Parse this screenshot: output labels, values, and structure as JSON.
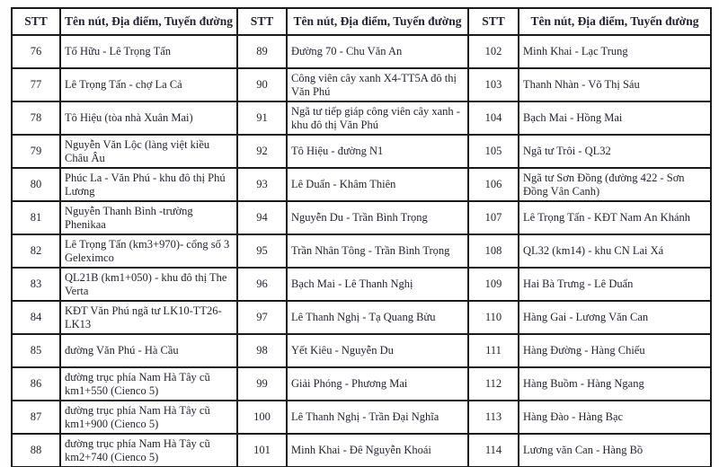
{
  "table": {
    "header": {
      "stt_label": "STT",
      "name_label": "Tên nút, Địa điểm, Tuyến đường"
    },
    "groups": [
      {
        "rows": [
          {
            "stt": "76",
            "name": "Tố Hữu - Lê Trọng Tấn"
          },
          {
            "stt": "77",
            "name": "Lê Trọng Tấn - chợ La Cả"
          },
          {
            "stt": "78",
            "name": "Tô Hiệu (tòa nhà Xuân Mai)"
          },
          {
            "stt": "79",
            "name": "Nguyễn Văn Lộc (làng việt kiều Châu Âu"
          },
          {
            "stt": "80",
            "name": "Phúc La - Văn Phú - khu đô thị Phú Lương"
          },
          {
            "stt": "81",
            "name": "Nguyễn Thanh Bình -trường Phenikaa"
          },
          {
            "stt": "82",
            "name": "Lê Trọng Tấn (km3+970)- cổng số 3 Geleximco"
          },
          {
            "stt": "83",
            "name": "QL21B (km1+050) - khu đô thị The Verta"
          },
          {
            "stt": "84",
            "name": "KĐT Văn Phú ngã tư LK10-TT26-LK13"
          },
          {
            "stt": "85",
            "name": "đường Văn Phú - Hà Cầu"
          },
          {
            "stt": "86",
            "name": "đường trục phía Nam Hà Tây cũ km1+550 (Cienco 5)"
          },
          {
            "stt": "87",
            "name": "đường trục phía Nam Hà Tây cũ km1+900 (Cienco 5)"
          },
          {
            "stt": "88",
            "name": "đường trục phía Nam Hà Tây cũ km2+740 (Cienco 5)"
          }
        ]
      },
      {
        "rows": [
          {
            "stt": "89",
            "name": "Đường 70 - Chu Văn An"
          },
          {
            "stt": "90",
            "name": "Công viên cây xanh X4-TT5A đô thị Văn Phú"
          },
          {
            "stt": "91",
            "name": "Ngã tư tiếp giáp công viên cây xanh - khu đô thị Văn Phú"
          },
          {
            "stt": "92",
            "name": "Tô Hiệu - đường N1"
          },
          {
            "stt": "93",
            "name": "Lê Duẩn - Khâm Thiên"
          },
          {
            "stt": "94",
            "name": "Nguyễn Du - Trần Bình Trọng"
          },
          {
            "stt": "95",
            "name": "Trần Nhân Tông - Trần Bình Trọng"
          },
          {
            "stt": "96",
            "name": "Bạch Mai - Lê Thanh Nghị"
          },
          {
            "stt": "97",
            "name": "Lê Thanh Nghị - Tạ Quang Bửu"
          },
          {
            "stt": "98",
            "name": "Yết Kiêu - Nguyễn Du"
          },
          {
            "stt": "99",
            "name": "Giải Phóng - Phương Mai"
          },
          {
            "stt": "100",
            "name": "Lê Thanh Nghị - Trần Đại Nghĩa"
          },
          {
            "stt": "101",
            "name": "Minh Khai - Đê Nguyễn Khoái"
          }
        ]
      },
      {
        "rows": [
          {
            "stt": "102",
            "name": "Minh Khai - Lạc Trung"
          },
          {
            "stt": "103",
            "name": "Thanh Nhàn - Võ Thị Sáu"
          },
          {
            "stt": "104",
            "name": "Bạch Mai - Hồng Mai"
          },
          {
            "stt": "105",
            "name": "Ngã tư Trôi - QL32"
          },
          {
            "stt": "106",
            "name": "Ngã tư Sơn Đồng (đường 422 - Sơn Đồng Vân Canh)"
          },
          {
            "stt": "107",
            "name": "Lê Trọng Tấn - KĐT Nam An Khánh"
          },
          {
            "stt": "108",
            "name": "QL32 (km14) - khu CN Lai Xá"
          },
          {
            "stt": "109",
            "name": "Hai Bà Trưng - Lê Duẩn"
          },
          {
            "stt": "110",
            "name": "Hàng Gai - Lương Văn Can"
          },
          {
            "stt": "111",
            "name": "Hàng Đường - Hàng Chiếu"
          },
          {
            "stt": "112",
            "name": "Hàng Buồm - Hàng Ngang"
          },
          {
            "stt": "113",
            "name": "Hàng Đào - Hàng Bạc"
          },
          {
            "stt": "114",
            "name": "Lương văn Can - Hàng Bồ"
          }
        ]
      }
    ],
    "colors": {
      "border": "#1b1b1b",
      "text": "#23242f",
      "background": "#ffffff"
    }
  }
}
